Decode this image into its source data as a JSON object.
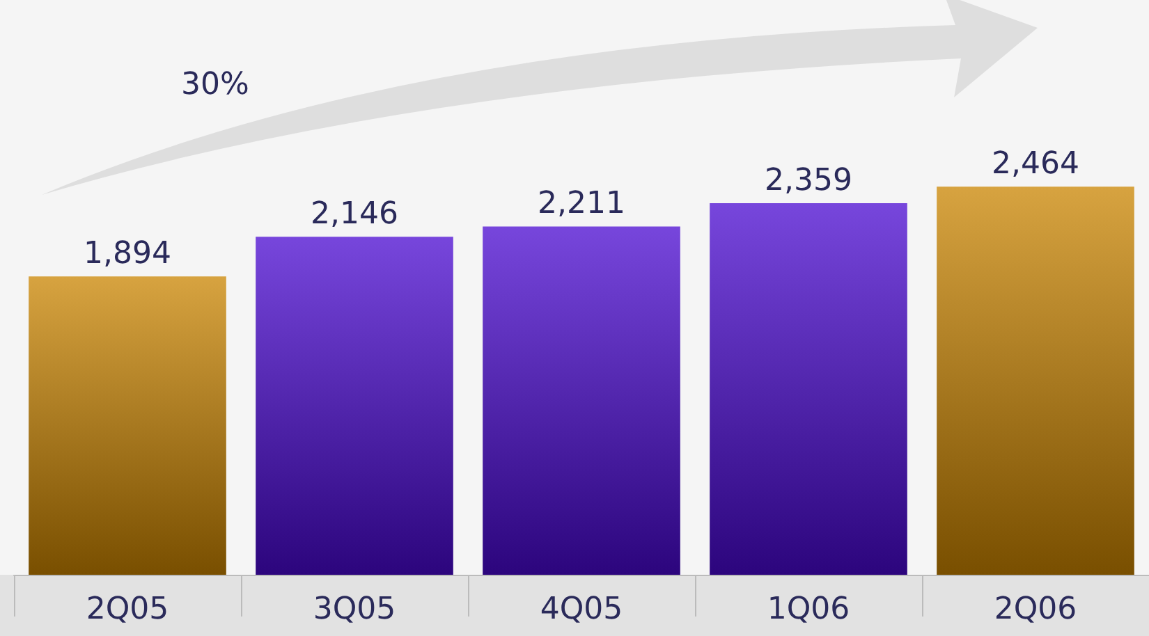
{
  "chart_data": {
    "type": "bar",
    "categories": [
      "2Q05",
      "3Q05",
      "4Q05",
      "1Q06",
      "2Q06"
    ],
    "values": [
      1894,
      2146,
      2211,
      2359,
      2464
    ],
    "value_labels": [
      "1,894",
      "2,146",
      "2,211",
      "2,359",
      "2,464"
    ],
    "colors": [
      "#c98400",
      "#4a08d0",
      "#4a08d0",
      "#4a08d0",
      "#c98400"
    ],
    "tick_labels": "x",
    "annotations": [
      "30%"
    ]
  }
}
